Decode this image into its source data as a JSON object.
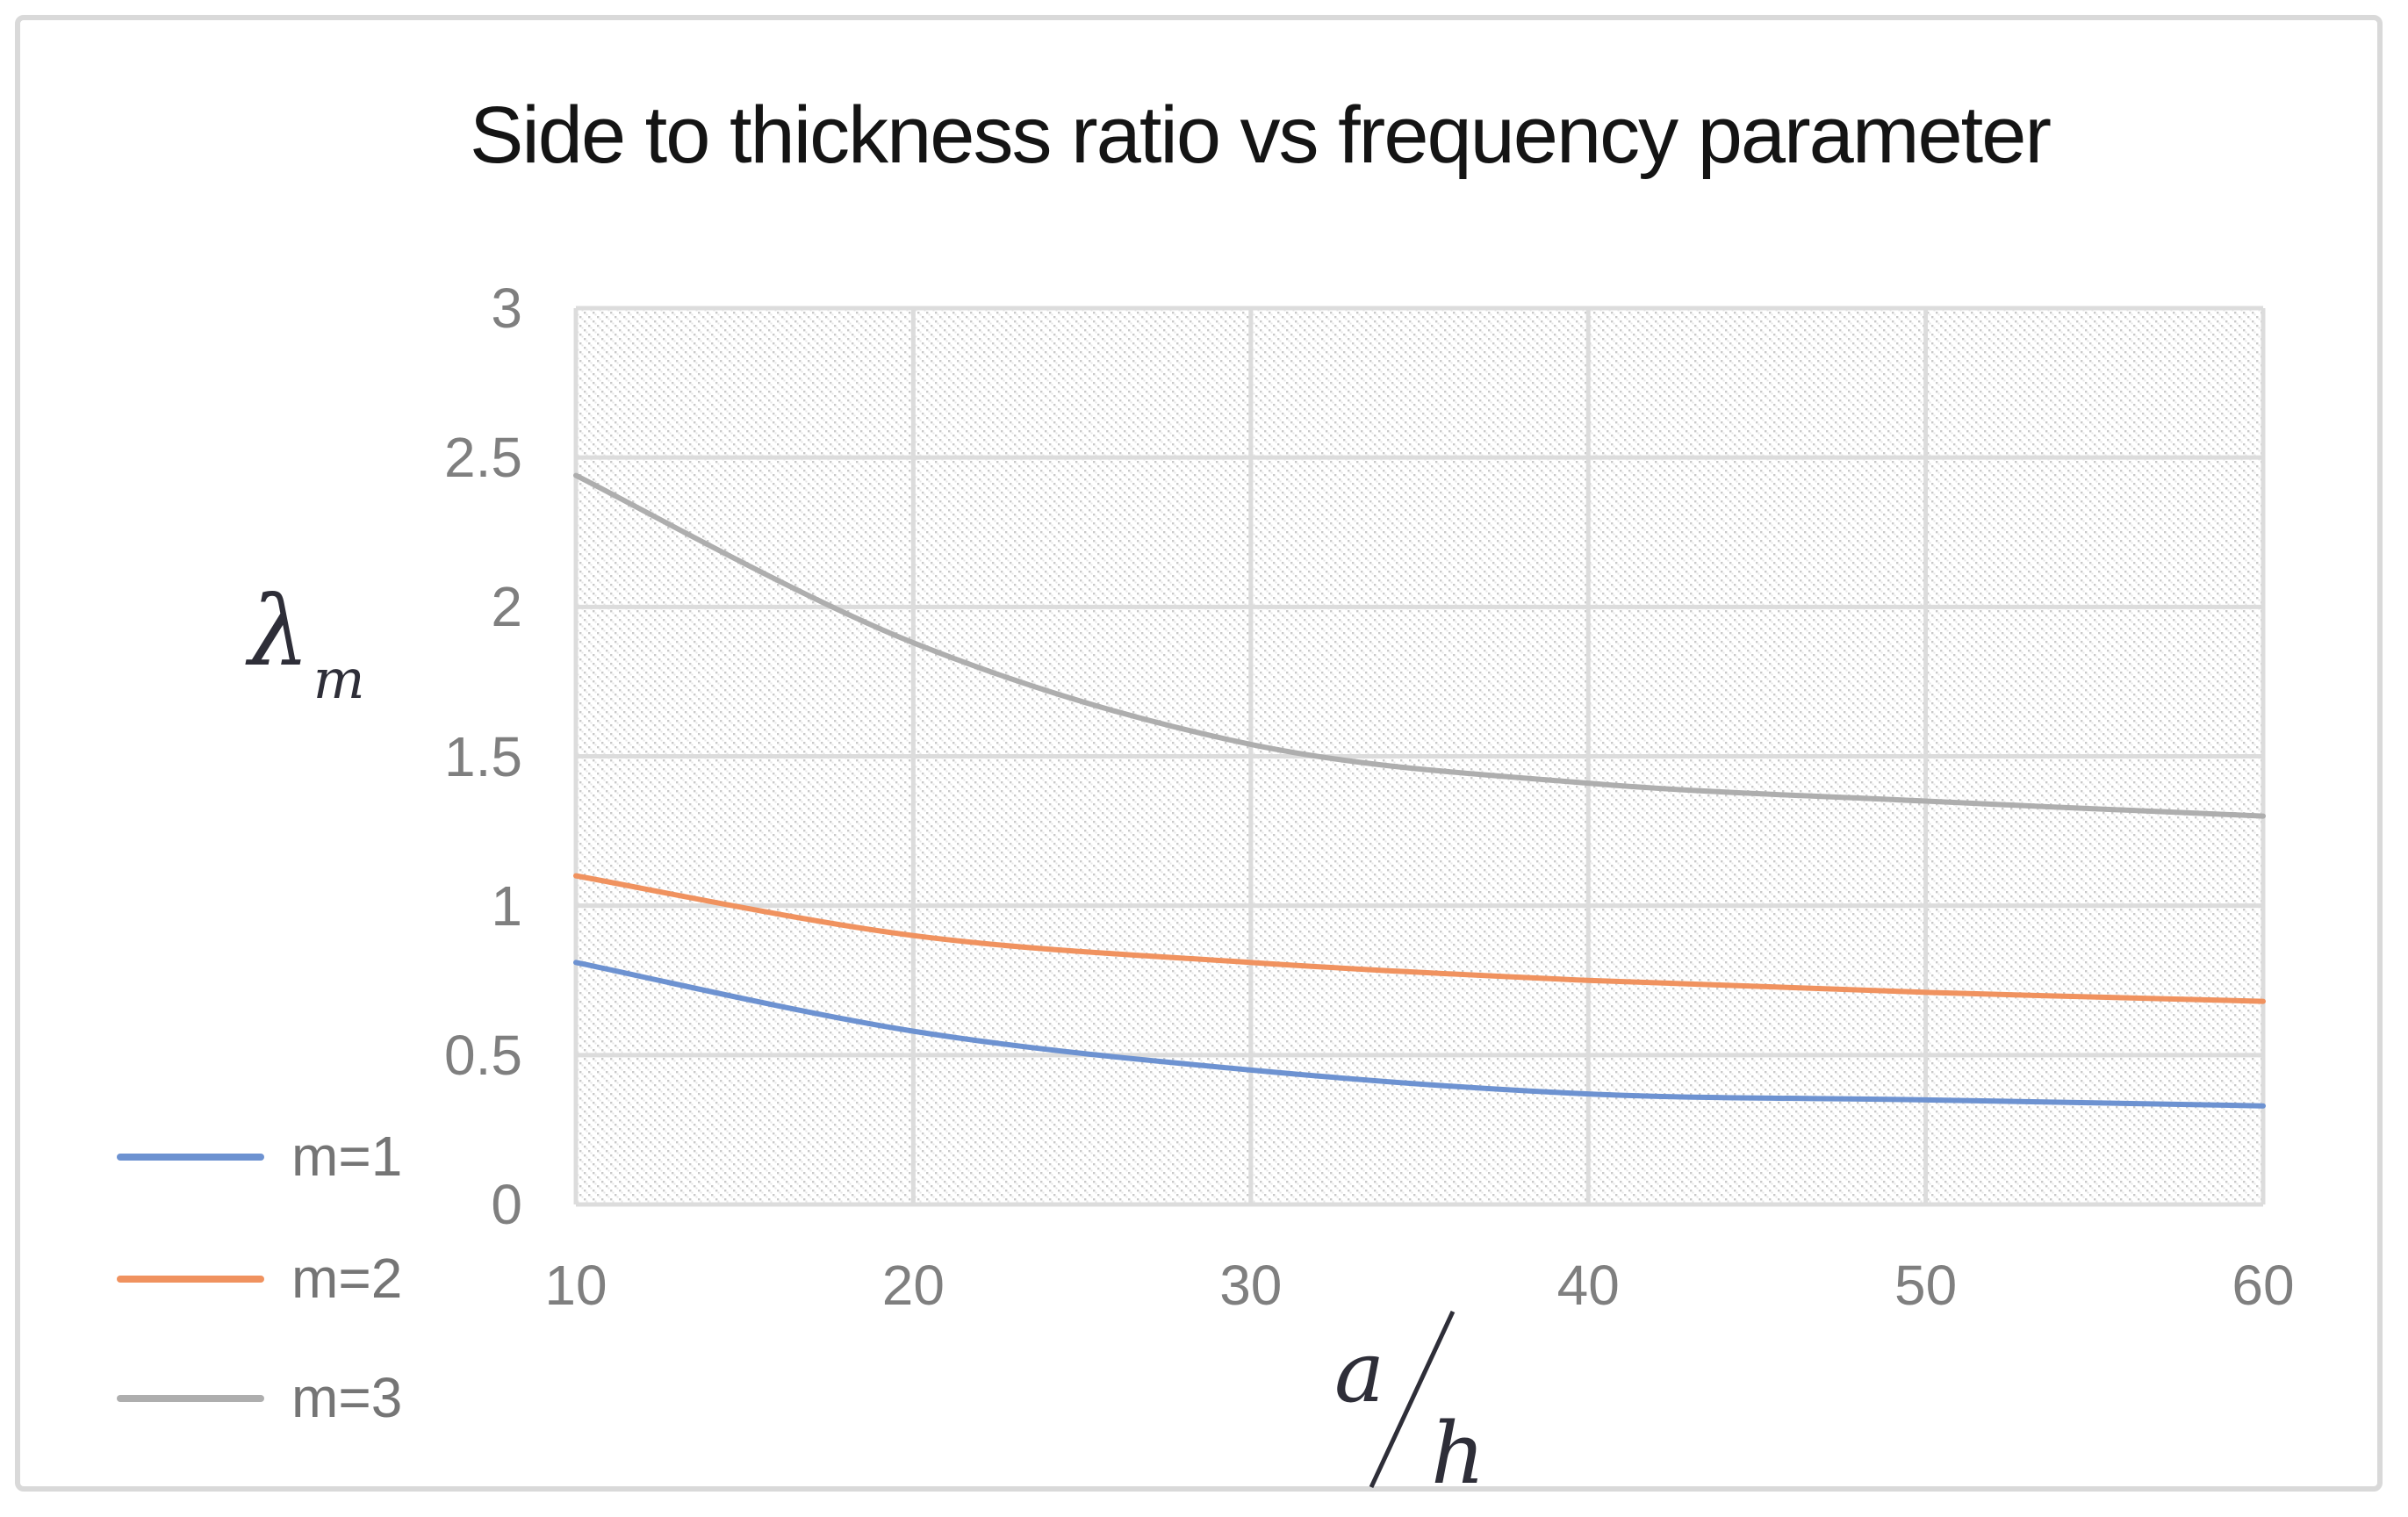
{
  "figure": {
    "background": "#ffffff",
    "border_color": "#d9d9d9"
  },
  "chart_data": {
    "type": "line",
    "title": "Side to thickness ratio vs frequency parameter",
    "x_axis": {
      "label_numerator": "a",
      "label_denominator": "h",
      "range": [
        10,
        60
      ],
      "ticks": [
        10,
        20,
        30,
        40,
        50,
        60
      ]
    },
    "y_axis": {
      "label_symbol": "λ",
      "label_subscript": "m",
      "range": [
        0,
        3
      ],
      "ticks": [
        0,
        0.5,
        1,
        1.5,
        2,
        2.5,
        3
      ],
      "tick_labels": [
        "0",
        "0.5",
        "1",
        "1.5",
        "2",
        "2.5",
        "3"
      ]
    },
    "x": [
      10,
      20,
      30,
      40,
      50,
      60
    ],
    "series": [
      {
        "name": "m=1",
        "color": "#6d92d1",
        "values": [
          0.81,
          0.58,
          0.45,
          0.37,
          0.35,
          0.33
        ]
      },
      {
        "name": "m=2",
        "color": "#f0925f",
        "values": [
          1.1,
          0.9,
          0.81,
          0.75,
          0.71,
          0.68
        ]
      },
      {
        "name": "m=3",
        "color": "#aeaeae",
        "values": [
          2.44,
          1.88,
          1.54,
          1.41,
          1.35,
          1.3
        ]
      }
    ],
    "legend": {
      "position": "left-bottom",
      "entries": [
        "m=1",
        "m=2",
        "m=3"
      ]
    },
    "grid": true,
    "plot_area_fill": "diagonal-hatch",
    "style": {
      "grid_color": "#dcdcdc",
      "hatch_dot_color": "#c9c9c9",
      "hatch_dot_color_light": "#e6e6e6",
      "tick_text_color": "#7f7f7f",
      "legend_text_color": "#757575",
      "title_color": "#141414",
      "axis_label_color": "#2e2e38"
    }
  }
}
